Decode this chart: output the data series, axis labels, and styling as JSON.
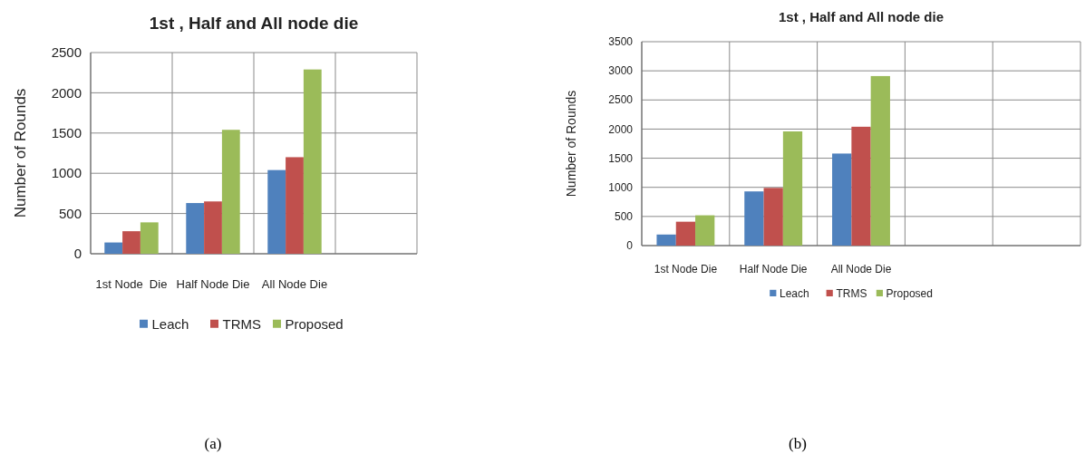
{
  "chart_data": [
    {
      "type": "bar",
      "title": "1st , Half and All node die",
      "ylabel": "Number of Rounds",
      "categories": [
        "1st Node  Die",
        "Half Node Die",
        "All Node Die",
        null
      ],
      "series": [
        {
          "name": "Leach",
          "color": "#4f81bd",
          "values": [
            140,
            630,
            1040,
            null
          ]
        },
        {
          "name": "TRMS",
          "color": "#c0504d",
          "values": [
            280,
            650,
            1200,
            null
          ]
        },
        {
          "name": "Proposed",
          "color": "#9bbb59",
          "values": [
            390,
            1540,
            2290,
            null
          ]
        }
      ],
      "ylim": [
        0,
        2500
      ],
      "yticks": [
        0,
        500,
        1000,
        1500,
        2000,
        2500
      ],
      "grid": true,
      "legend": "bottom",
      "annotations": [
        "(a)"
      ]
    },
    {
      "type": "bar",
      "title": "1st , Half and All node die",
      "ylabel": "Number of Rounds",
      "categories": [
        "1st Node Die",
        "Half Node Die",
        "All Node Die",
        null,
        null
      ],
      "series": [
        {
          "name": "Leach",
          "color": "#4f81bd",
          "values": [
            190,
            930,
            1580,
            null,
            null
          ]
        },
        {
          "name": "TRMS",
          "color": "#c0504d",
          "values": [
            410,
            990,
            2040,
            null,
            null
          ]
        },
        {
          "name": "Proposed",
          "color": "#9bbb59",
          "values": [
            520,
            1960,
            2910,
            null,
            null
          ]
        }
      ],
      "ylim": [
        0,
        3500
      ],
      "yticks": [
        0,
        500,
        1000,
        1500,
        2000,
        2500,
        3000,
        3500
      ],
      "grid": true,
      "legend": "bottom",
      "annotations": [
        "(b)"
      ]
    }
  ]
}
